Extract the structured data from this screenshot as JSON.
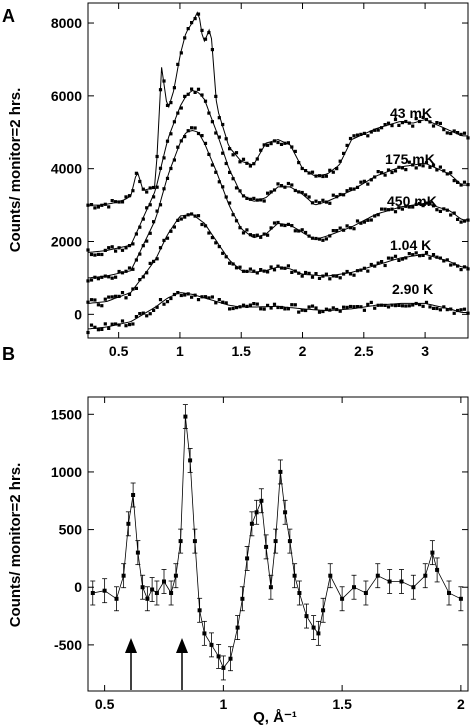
{
  "chart_data": [
    {
      "panel": "A",
      "type": "scatter",
      "ylabel": "Counts/ monitor=2 hrs.",
      "xlim": [
        0.25,
        3.35
      ],
      "ylim": [
        -650,
        8550
      ],
      "x_ticks": [
        "0.5",
        "1",
        "1.5",
        "2",
        "2.5",
        "3"
      ],
      "y_ticks": [
        "0",
        "2000",
        "4000",
        "6000",
        "8000"
      ],
      "series": [
        {
          "name": "43 mK",
          "offset": 3000,
          "x": [
            0.25,
            0.35,
            0.45,
            0.55,
            0.6,
            0.65,
            0.7,
            0.8,
            0.85,
            0.9,
            0.95,
            1.0,
            1.05,
            1.1,
            1.15,
            1.18,
            1.2,
            1.25,
            1.3,
            1.4,
            1.5,
            1.6,
            1.7,
            1.8,
            1.9,
            2.0,
            2.1,
            2.2,
            2.3,
            2.4,
            2.5,
            2.6,
            2.7,
            2.8,
            2.9,
            3.0,
            3.1,
            3.2,
            3.3
          ],
          "y": [
            3000,
            3000,
            3050,
            3150,
            3250,
            3950,
            3400,
            3500,
            6800,
            5600,
            6150,
            7100,
            7750,
            8000,
            8350,
            7700,
            7500,
            7900,
            5700,
            4600,
            4200,
            4100,
            4700,
            4800,
            4650,
            4000,
            3800,
            3850,
            4100,
            4800,
            4950,
            5100,
            5200,
            5300,
            5250,
            5350,
            5200,
            5050,
            4900
          ]
        },
        {
          "name": "175 mK",
          "offset": 1650,
          "x": [
            0.25,
            0.4,
            0.6,
            0.8,
            0.9,
            1.0,
            1.05,
            1.1,
            1.15,
            1.2,
            1.3,
            1.4,
            1.5,
            1.6,
            1.7,
            1.8,
            1.9,
            2.0,
            2.1,
            2.2,
            2.4,
            2.6,
            2.8,
            3.0,
            3.2,
            3.3
          ],
          "y": [
            1700,
            1750,
            1900,
            3400,
            4800,
            5700,
            6000,
            6150,
            6100,
            5900,
            5000,
            4000,
            3300,
            3100,
            3200,
            3500,
            3500,
            3300,
            3000,
            3100,
            3400,
            3800,
            4050,
            4150,
            3850,
            3550
          ]
        },
        {
          "name": "450 mK",
          "offset": 900,
          "x": [
            0.25,
            0.4,
            0.6,
            0.8,
            0.9,
            1.0,
            1.05,
            1.1,
            1.15,
            1.2,
            1.3,
            1.4,
            1.5,
            1.6,
            1.7,
            1.8,
            1.9,
            2.0,
            2.1,
            2.2,
            2.4,
            2.6,
            2.8,
            3.0,
            3.2,
            3.3
          ],
          "y": [
            1000,
            1050,
            1200,
            2600,
            3800,
            4700,
            5000,
            5050,
            5000,
            4700,
            3900,
            3000,
            2350,
            2100,
            2200,
            2500,
            2450,
            2250,
            2050,
            2150,
            2400,
            2750,
            2950,
            3050,
            2850,
            2600
          ]
        },
        {
          "name": "1.04 K",
          "offset": 250,
          "x": [
            0.25,
            0.4,
            0.6,
            0.8,
            0.9,
            1.0,
            1.1,
            1.2,
            1.3,
            1.4,
            1.5,
            1.6,
            1.7,
            1.8,
            1.9,
            2.0,
            2.2,
            2.4,
            2.6,
            2.8,
            3.0,
            3.2,
            3.3
          ],
          "y": [
            300,
            350,
            600,
            1500,
            2200,
            2700,
            2750,
            2500,
            2000,
            1500,
            1200,
            1150,
            1200,
            1300,
            1250,
            1100,
            1050,
            1150,
            1350,
            1550,
            1650,
            1450,
            1300
          ]
        },
        {
          "name": "2.90 K",
          "offset": -400,
          "x": [
            0.25,
            0.4,
            0.6,
            0.8,
            0.9,
            1.0,
            1.1,
            1.2,
            1.3,
            1.4,
            1.5,
            1.6,
            1.8,
            2.0,
            2.2,
            2.4,
            2.6,
            2.8,
            3.0,
            3.2,
            3.3
          ],
          "y": [
            -400,
            -350,
            -200,
            200,
            450,
            600,
            550,
            450,
            350,
            250,
            200,
            200,
            220,
            150,
            100,
            150,
            250,
            300,
            300,
            150,
            50
          ]
        }
      ]
    },
    {
      "panel": "B",
      "type": "line",
      "ylabel": "Counts/ monitor=2 hrs.",
      "xlabel": "Q, Å⁻¹",
      "xlim": [
        0.43,
        2.03
      ],
      "ylim": [
        -900,
        1650
      ],
      "x_ticks": [
        "0.5",
        "1",
        "1.5",
        "2"
      ],
      "y_ticks": [
        "-500",
        "0",
        "500",
        "1000",
        "1500"
      ],
      "x": [
        0.45,
        0.5,
        0.55,
        0.58,
        0.6,
        0.62,
        0.64,
        0.66,
        0.68,
        0.7,
        0.72,
        0.75,
        0.78,
        0.8,
        0.82,
        0.84,
        0.86,
        0.88,
        0.9,
        0.92,
        0.95,
        0.98,
        1.0,
        1.03,
        1.06,
        1.08,
        1.1,
        1.12,
        1.14,
        1.16,
        1.18,
        1.2,
        1.22,
        1.24,
        1.26,
        1.28,
        1.3,
        1.32,
        1.35,
        1.38,
        1.4,
        1.42,
        1.45,
        1.5,
        1.55,
        1.6,
        1.65,
        1.7,
        1.75,
        1.8,
        1.85,
        1.88,
        1.9,
        1.95,
        2.0
      ],
      "y": [
        -50,
        -30,
        -100,
        100,
        550,
        800,
        300,
        0,
        -100,
        -20,
        -50,
        50,
        -50,
        100,
        400,
        1480,
        1100,
        400,
        -200,
        -400,
        -500,
        -600,
        -700,
        -620,
        -350,
        -100,
        250,
        550,
        650,
        750,
        350,
        0,
        400,
        1000,
        650,
        400,
        100,
        -50,
        -250,
        -350,
        -400,
        -200,
        100,
        -100,
        0,
        -50,
        100,
        50,
        50,
        0,
        100,
        300,
        150,
        -50,
        -100
      ],
      "annotations": [
        "arrow at Q=0.64",
        "arrow at Q=0.86"
      ]
    }
  ],
  "panels": {
    "a": {
      "letter": "A",
      "ylabel": "Counts/ monitor=2 hrs.",
      "labels": [
        "43  mK",
        "175  mK",
        "450  mK",
        "1.04  K",
        "2.90  K"
      ]
    },
    "b": {
      "letter": "B",
      "ylabel": "Counts/ monitor=2 hrs.",
      "xlabel": "Q,  Å⁻¹"
    }
  }
}
